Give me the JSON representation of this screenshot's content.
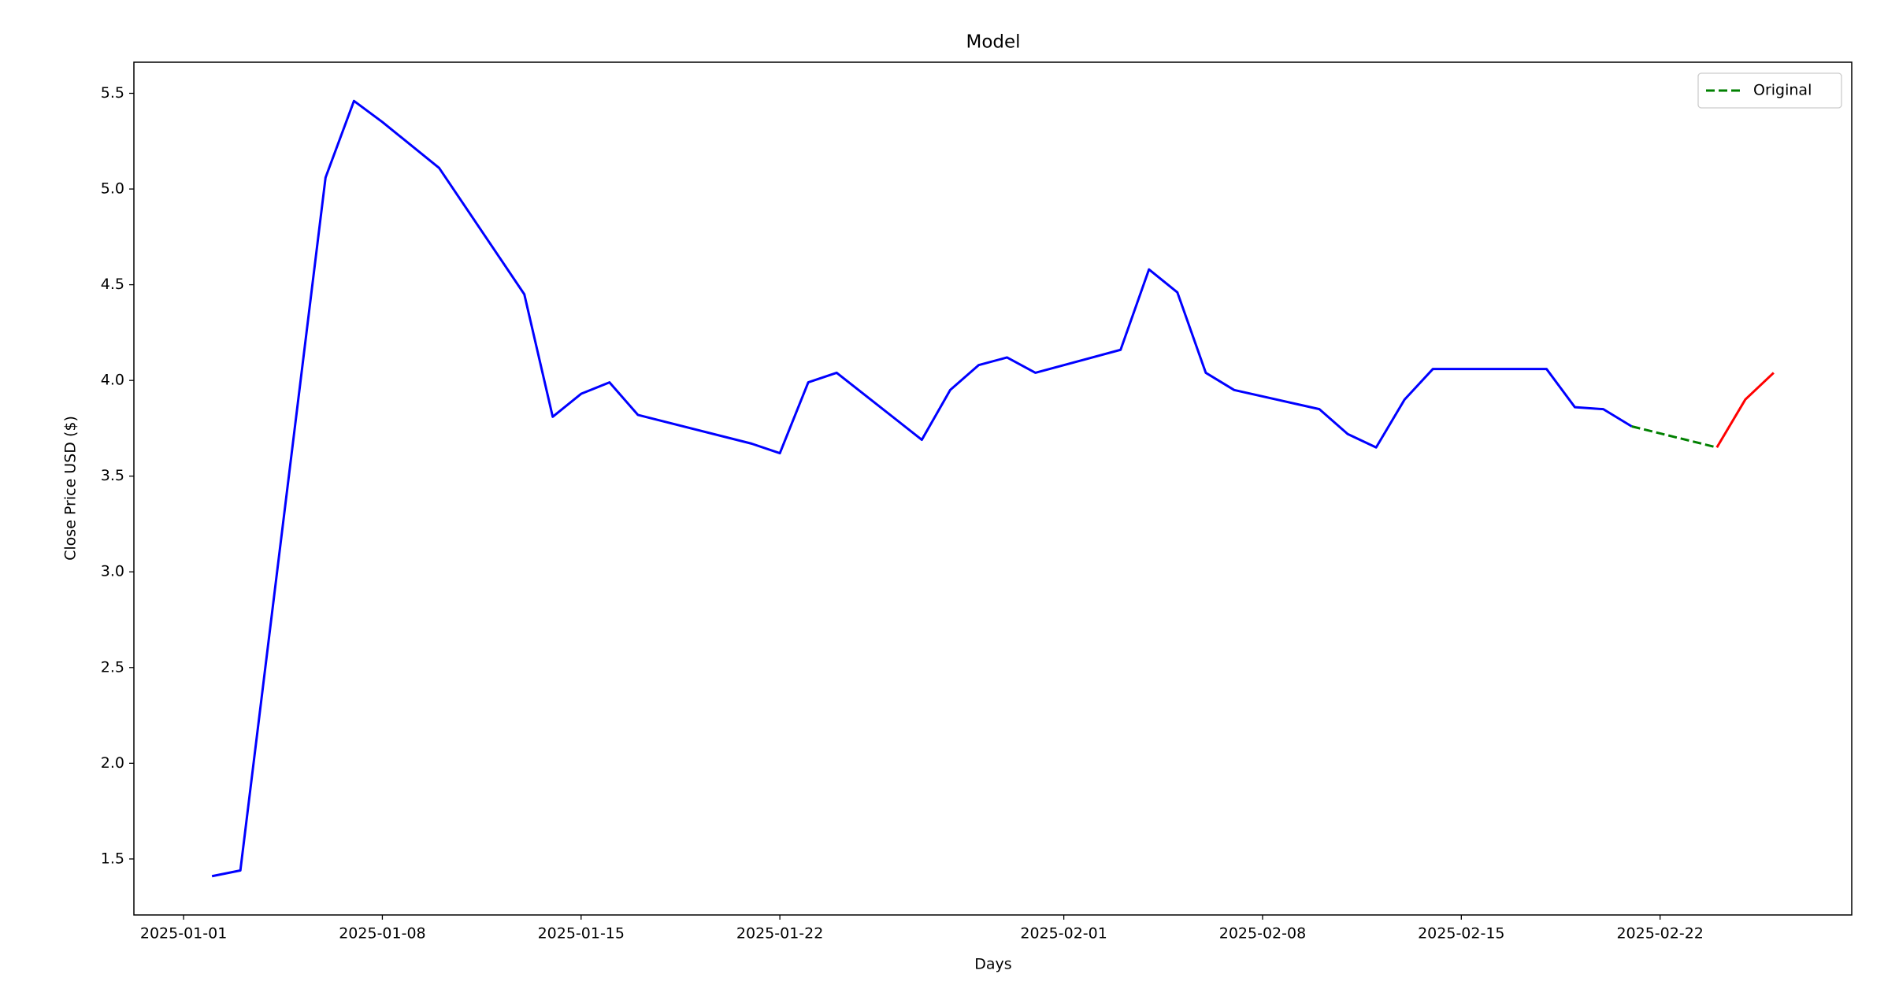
{
  "chart_data": {
    "type": "line",
    "title": "Model",
    "x_label": "Days",
    "y_label": "Close Price USD ($)",
    "xlim": [
      "2024-12-30T06:00:00Z",
      "2025-02-28T18:00:00Z"
    ],
    "ylim": [
      1.2075,
      5.6625
    ],
    "xticks": [
      "2025-01-01",
      "2025-01-08",
      "2025-01-15",
      "2025-01-22",
      "2025-02-01",
      "2025-02-08",
      "2025-02-15",
      "2025-02-22"
    ],
    "yticks": [
      1.5,
      {
        "value": 2,
        "label": "2.0"
      },
      2.5,
      {
        "value": 3,
        "label": "3.0"
      },
      3.5,
      {
        "value": 4,
        "label": "4.0"
      },
      4.5,
      {
        "value": 5,
        "label": "5.0"
      },
      5.5
    ],
    "grid": false,
    "legend": "upper right",
    "series": [
      {
        "color": "#0000ff",
        "dash": false,
        "x": [
          "2025-01-02",
          "2025-01-03",
          "2025-01-06",
          "2025-01-07",
          "2025-01-08",
          "2025-01-10",
          "2025-01-13",
          "2025-01-14",
          "2025-01-15",
          "2025-01-16",
          "2025-01-17",
          "2025-01-21",
          "2025-01-22",
          "2025-01-23",
          "2025-01-24",
          "2025-01-27",
          "2025-01-28",
          "2025-01-29",
          "2025-01-30",
          "2025-01-31",
          "2025-02-03",
          "2025-02-04",
          "2025-02-05",
          "2025-02-06",
          "2025-02-07",
          "2025-02-10",
          "2025-02-11",
          "2025-02-12",
          "2025-02-13",
          "2025-02-14",
          "2025-02-18",
          "2025-02-19",
          "2025-02-20",
          "2025-02-21"
        ],
        "values": [
          1.41,
          1.44,
          5.06,
          5.46,
          5.35,
          5.11,
          4.45,
          3.81,
          3.93,
          3.99,
          3.82,
          3.67,
          3.62,
          3.99,
          4.04,
          3.69,
          3.95,
          4.08,
          4.12,
          4.04,
          4.16,
          4.58,
          4.46,
          4.04,
          3.95,
          3.85,
          3.72,
          3.65,
          3.9,
          4.06,
          4.06,
          3.86,
          3.85,
          3.76
        ]
      },
      {
        "name": "Original",
        "color": "#008000",
        "dash": true,
        "x": [
          "2025-02-21",
          "2025-02-24"
        ],
        "values": [
          3.76,
          3.65
        ]
      },
      {
        "color": "#ff0000",
        "dash": false,
        "x": [
          "2025-02-24",
          "2025-02-25",
          "2025-02-26"
        ],
        "values": [
          3.65,
          3.9,
          4.04
        ]
      }
    ]
  }
}
